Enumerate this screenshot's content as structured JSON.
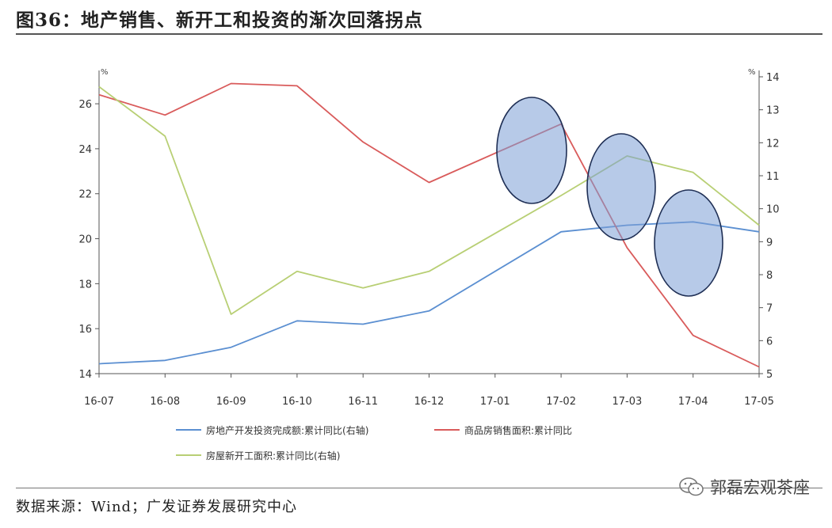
{
  "title": "图36：地产销售、新开工和投资的渐次回落拐点",
  "source": "数据来源：Wind；广发证券发展研究中心",
  "watermark": "郭磊宏观茶座",
  "chart_data": {
    "type": "line",
    "categories": [
      "16-07",
      "16-08",
      "16-09",
      "16-10",
      "16-11",
      "16-12",
      "17-01",
      "17-02",
      "17-03",
      "17-04",
      "17-05"
    ],
    "y_left": {
      "unit": "%",
      "min": 14,
      "max": 27.2,
      "ticks": [
        14,
        16,
        18,
        20,
        22,
        24,
        26
      ]
    },
    "y_right": {
      "unit": "%",
      "min": 5,
      "max": 14,
      "ticks": [
        5,
        6,
        7,
        8,
        9,
        10,
        11,
        12,
        13,
        14
      ]
    },
    "series": [
      {
        "name": "房地产开发投资完成额:累计同比(右轴)",
        "axis": "right",
        "color": "#5b8fd1",
        "values": [
          5.3,
          5.4,
          5.8,
          6.6,
          6.5,
          6.9,
          null,
          9.3,
          9.5,
          9.6,
          9.3
        ]
      },
      {
        "name": "商品房销售面积:累计同比",
        "axis": "left",
        "color": "#d95b5b",
        "values": [
          26.4,
          25.5,
          26.9,
          26.8,
          24.3,
          22.5,
          null,
          25.1,
          19.6,
          15.7,
          14.3
        ]
      },
      {
        "name": "房屋新开工面积:累计同比(右轴)",
        "axis": "right",
        "color": "#b8cf74",
        "values": [
          13.7,
          12.2,
          6.8,
          8.1,
          7.6,
          8.1,
          null,
          10.4,
          11.6,
          11.1,
          9.5
        ]
      }
    ],
    "legend_position": "bottom",
    "grid": false
  }
}
